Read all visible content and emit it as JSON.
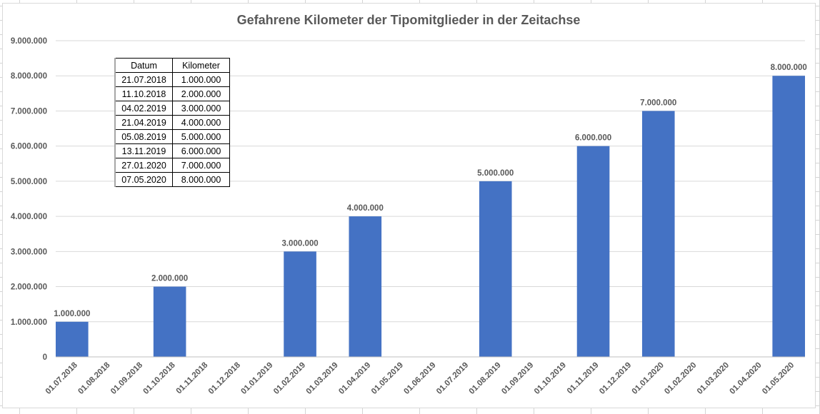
{
  "chart_data": {
    "type": "bar",
    "title": "Gefahrene Kilometer der Tipomitglieder in der Zeitachse",
    "xlabel": "",
    "ylabel": "",
    "ylim": [
      0,
      9000000
    ],
    "grid": true,
    "color": "#4472c4",
    "y_ticks": [
      "0",
      "1.000.000",
      "2.000.000",
      "3.000.000",
      "4.000.000",
      "5.000.000",
      "6.000.000",
      "7.000.000",
      "8.000.000",
      "9.000.000"
    ],
    "categories": [
      "01.07.2018",
      "01.08.2018",
      "01.09.2018",
      "01.10.2018",
      "01.11.2018",
      "01.12.2018",
      "01.01.2019",
      "01.02.2019",
      "01.03.2019",
      "01.04.2019",
      "01.05.2019",
      "01.06.2019",
      "01.07.2019",
      "01.08.2019",
      "01.09.2019",
      "01.10.2019",
      "01.11.2019",
      "01.12.2019",
      "01.01.2020",
      "01.02.2020",
      "01.03.2020",
      "01.04.2020",
      "01.05.2020"
    ],
    "values": [
      1000000,
      null,
      null,
      2000000,
      null,
      null,
      null,
      3000000,
      null,
      4000000,
      null,
      null,
      null,
      5000000,
      null,
      null,
      6000000,
      null,
      7000000,
      null,
      null,
      null,
      8000000
    ],
    "data_labels": [
      "1.000.000",
      null,
      null,
      "2.000.000",
      null,
      null,
      null,
      "3.000.000",
      null,
      "4.000.000",
      null,
      null,
      null,
      "5.000.000",
      null,
      null,
      "6.000.000",
      null,
      "7.000.000",
      null,
      null,
      null,
      "8.000.000"
    ]
  },
  "table": {
    "headers": [
      "Datum",
      "Kilometer"
    ],
    "rows": [
      [
        "21.07.2018",
        "1.000.000"
      ],
      [
        "11.10.2018",
        "2.000.000"
      ],
      [
        "04.02.2019",
        "3.000.000"
      ],
      [
        "21.04.2019",
        "4.000.000"
      ],
      [
        "05.08.2019",
        "5.000.000"
      ],
      [
        "13.11.2019",
        "6.000.000"
      ],
      [
        "27.01.2020",
        "7.000.000"
      ],
      [
        "07.05.2020",
        "8.000.000"
      ]
    ]
  }
}
